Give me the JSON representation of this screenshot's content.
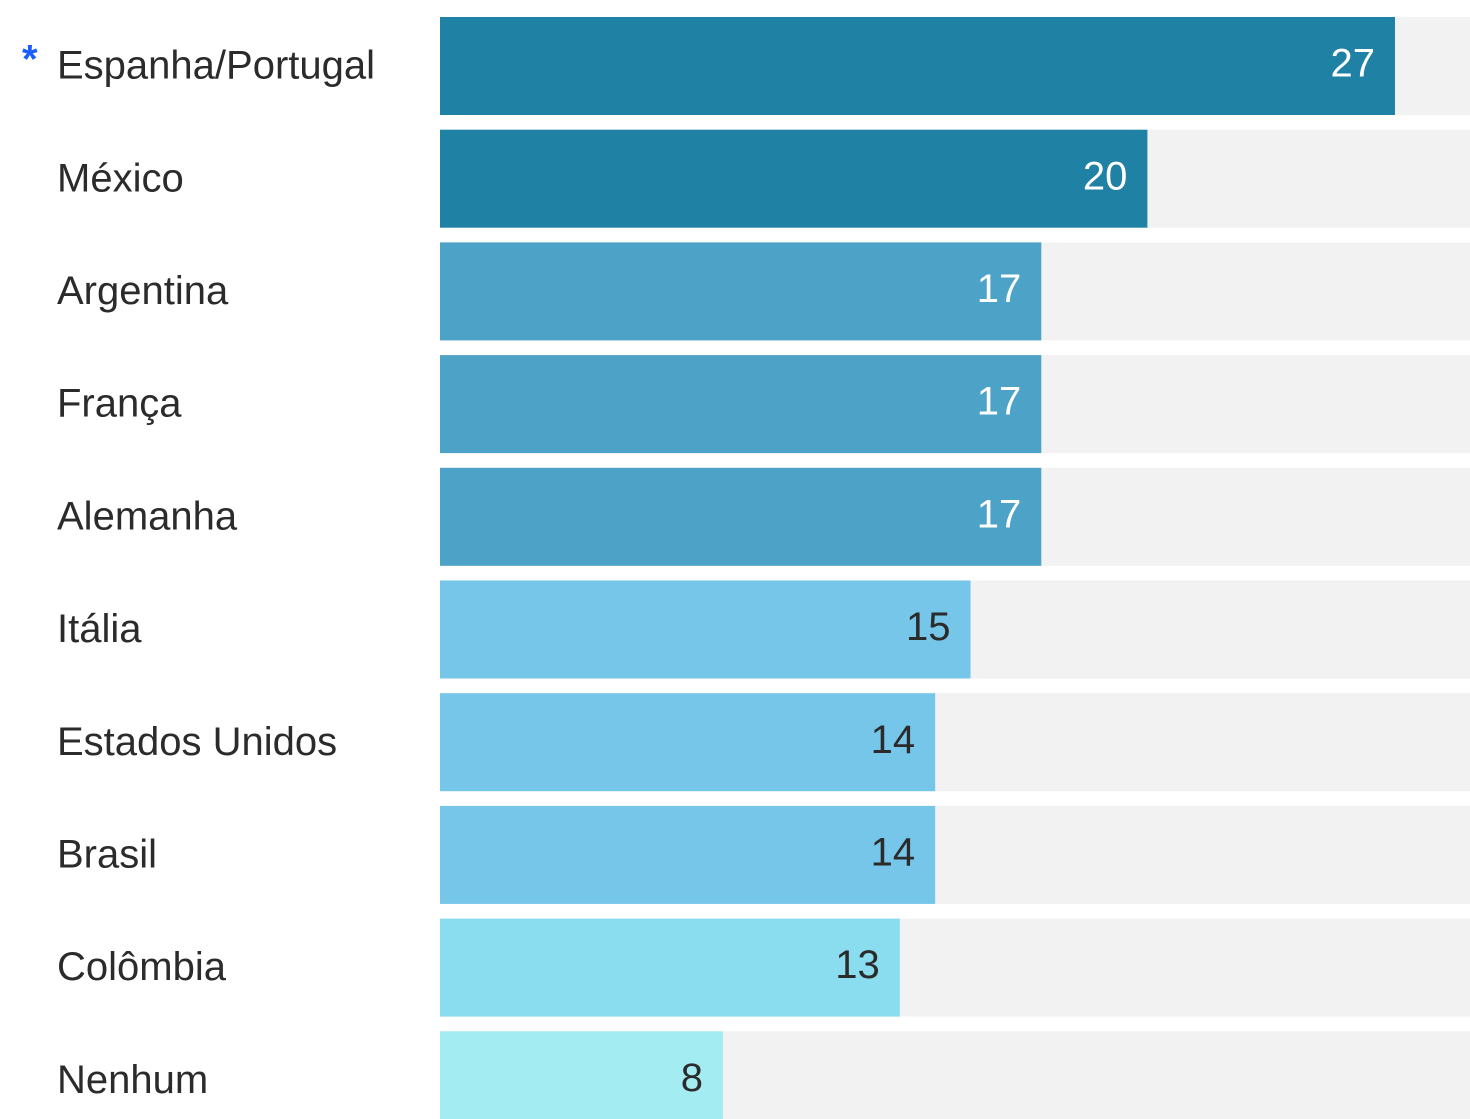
{
  "chart_data": {
    "type": "bar",
    "orientation": "horizontal",
    "annotation": "*",
    "categories": [
      "Espanha/Portugal",
      "México",
      "Argentina",
      "França",
      "Alemanha",
      "Itália",
      "Estados Unidos",
      "Brasil",
      "Colômbia",
      "Nenhum"
    ],
    "values": [
      27,
      20,
      17,
      17,
      17,
      15,
      14,
      14,
      13,
      8
    ],
    "colors": [
      "#1f81a3",
      "#1f81a3",
      "#4da2c7",
      "#4da2c7",
      "#4da2c7",
      "#76c6ea",
      "#76c6ea",
      "#76c6ea",
      "#8adcef",
      "#a3ecf2"
    ]
  }
}
